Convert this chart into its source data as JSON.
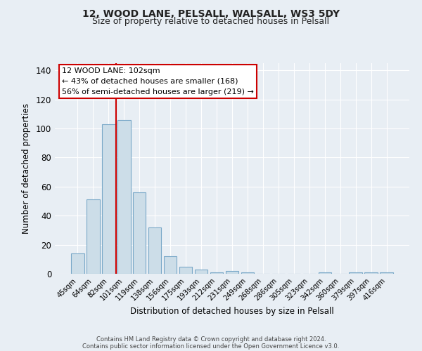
{
  "title": "12, WOOD LANE, PELSALL, WALSALL, WS3 5DY",
  "subtitle": "Size of property relative to detached houses in Pelsall",
  "xlabel": "Distribution of detached houses by size in Pelsall",
  "ylabel": "Number of detached properties",
  "bar_labels": [
    "45sqm",
    "64sqm",
    "82sqm",
    "101sqm",
    "119sqm",
    "138sqm",
    "156sqm",
    "175sqm",
    "193sqm",
    "212sqm",
    "231sqm",
    "249sqm",
    "268sqm",
    "286sqm",
    "305sqm",
    "323sqm",
    "342sqm",
    "360sqm",
    "379sqm",
    "397sqm",
    "416sqm"
  ],
  "bar_values": [
    14,
    51,
    103,
    106,
    56,
    32,
    12,
    5,
    3,
    1,
    2,
    1,
    0,
    0,
    0,
    0,
    1,
    0,
    1,
    1,
    1
  ],
  "bar_color": "#ccdde8",
  "bar_edge_color": "#7aa8c8",
  "vline_color": "#cc0000",
  "ylim": [
    0,
    145
  ],
  "yticks": [
    0,
    20,
    40,
    60,
    80,
    100,
    120,
    140
  ],
  "annotation_title": "12 WOOD LANE: 102sqm",
  "annotation_line1": "← 43% of detached houses are smaller (168)",
  "annotation_line2": "56% of semi-detached houses are larger (219) →",
  "annotation_box_facecolor": "#ffffff",
  "annotation_box_edgecolor": "#cc0000",
  "footer1": "Contains HM Land Registry data © Crown copyright and database right 2024.",
  "footer2": "Contains public sector information licensed under the Open Government Licence v3.0.",
  "background_color": "#e8eef4",
  "plot_background": "#e8eef4",
  "grid_color": "#ffffff",
  "title_fontsize": 10,
  "subtitle_fontsize": 9
}
